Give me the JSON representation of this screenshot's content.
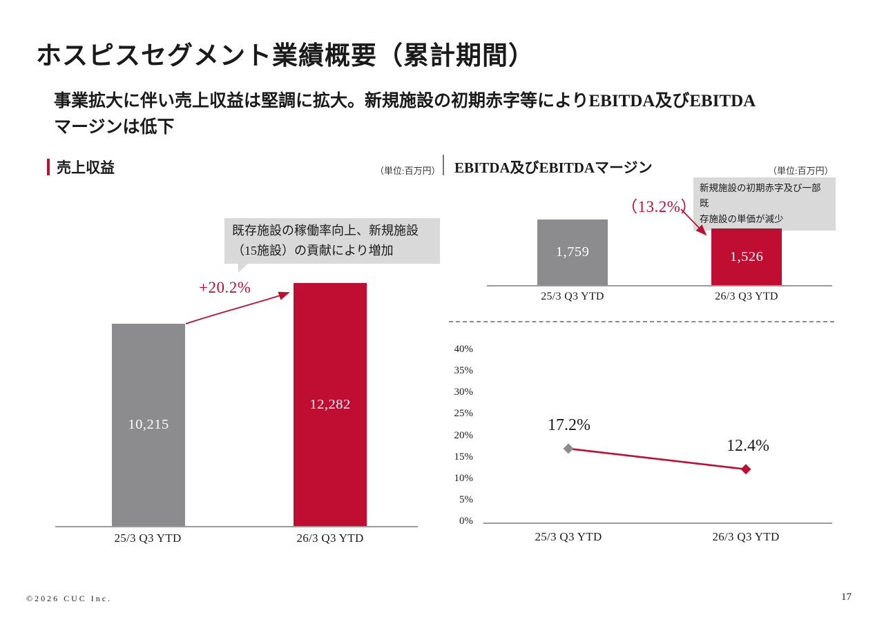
{
  "slide": {
    "title": "ホスピスセグメント業績概要（累計期間）",
    "subtitle": "事業拡大に伴い売上収益は堅調に拡大。新規施設の初期赤字等によりEBITDA及びEBITDA\nマージンは低下",
    "footer": "©2026 CUC Inc.",
    "page_number": "17"
  },
  "colors": {
    "accent_red": "#c00e33",
    "bar_gray": "#8c8c8e",
    "callout_bg": "#d9d9d9"
  },
  "sections": {
    "revenue": {
      "header": "売上収益",
      "unit": "（単位:百万円）",
      "growth_label": "+20.2%",
      "callout": "既存施設の稼働率向上、新規施設\n（15施設）の貢献により増加"
    },
    "ebitda": {
      "header": "EBITDA及びEBITDAマージン",
      "unit": "（単位:百万円）",
      "decline_label": "（13.2%）",
      "callout": "新規施設の初期赤字及び一部既\n存施設の単価が減少"
    }
  },
  "chart_data": [
    {
      "type": "bar",
      "title": "売上収益",
      "unit": "百万円",
      "categories": [
        "25/3 Q3 YTD",
        "26/3 Q3 YTD"
      ],
      "values": [
        10215,
        12282
      ],
      "value_labels": [
        "10,215",
        "12,282"
      ],
      "bar_colors": [
        "#8c8c8e",
        "#c00e33"
      ],
      "annotation": "+20.2%",
      "ylim": [
        0,
        12282
      ],
      "grid": false
    },
    {
      "type": "bar",
      "title": "EBITDA",
      "unit": "百万円",
      "categories": [
        "25/3 Q3 YTD",
        "26/3 Q3 YTD"
      ],
      "values": [
        1759,
        1526
      ],
      "value_labels": [
        "1,759",
        "1,526"
      ],
      "bar_colors": [
        "#8c8c8e",
        "#c00e33"
      ],
      "annotation": "（13.2%）",
      "ylim": [
        0,
        1759
      ],
      "grid": false
    },
    {
      "type": "line",
      "title": "EBITDAマージン",
      "categories": [
        "25/3 Q3 YTD",
        "26/3 Q3 YTD"
      ],
      "values": [
        17.2,
        12.4
      ],
      "value_labels": [
        "17.2%",
        "12.4%"
      ],
      "yticks": [
        "40%",
        "35%",
        "30%",
        "25%",
        "20%",
        "15%",
        "10%",
        "5%",
        "0%"
      ],
      "ylim": [
        0,
        40
      ],
      "marker": "diamond",
      "marker_colors": [
        "#8c8c8e",
        "#c00e33"
      ],
      "line_color": "#c00e33",
      "grid": false
    }
  ]
}
